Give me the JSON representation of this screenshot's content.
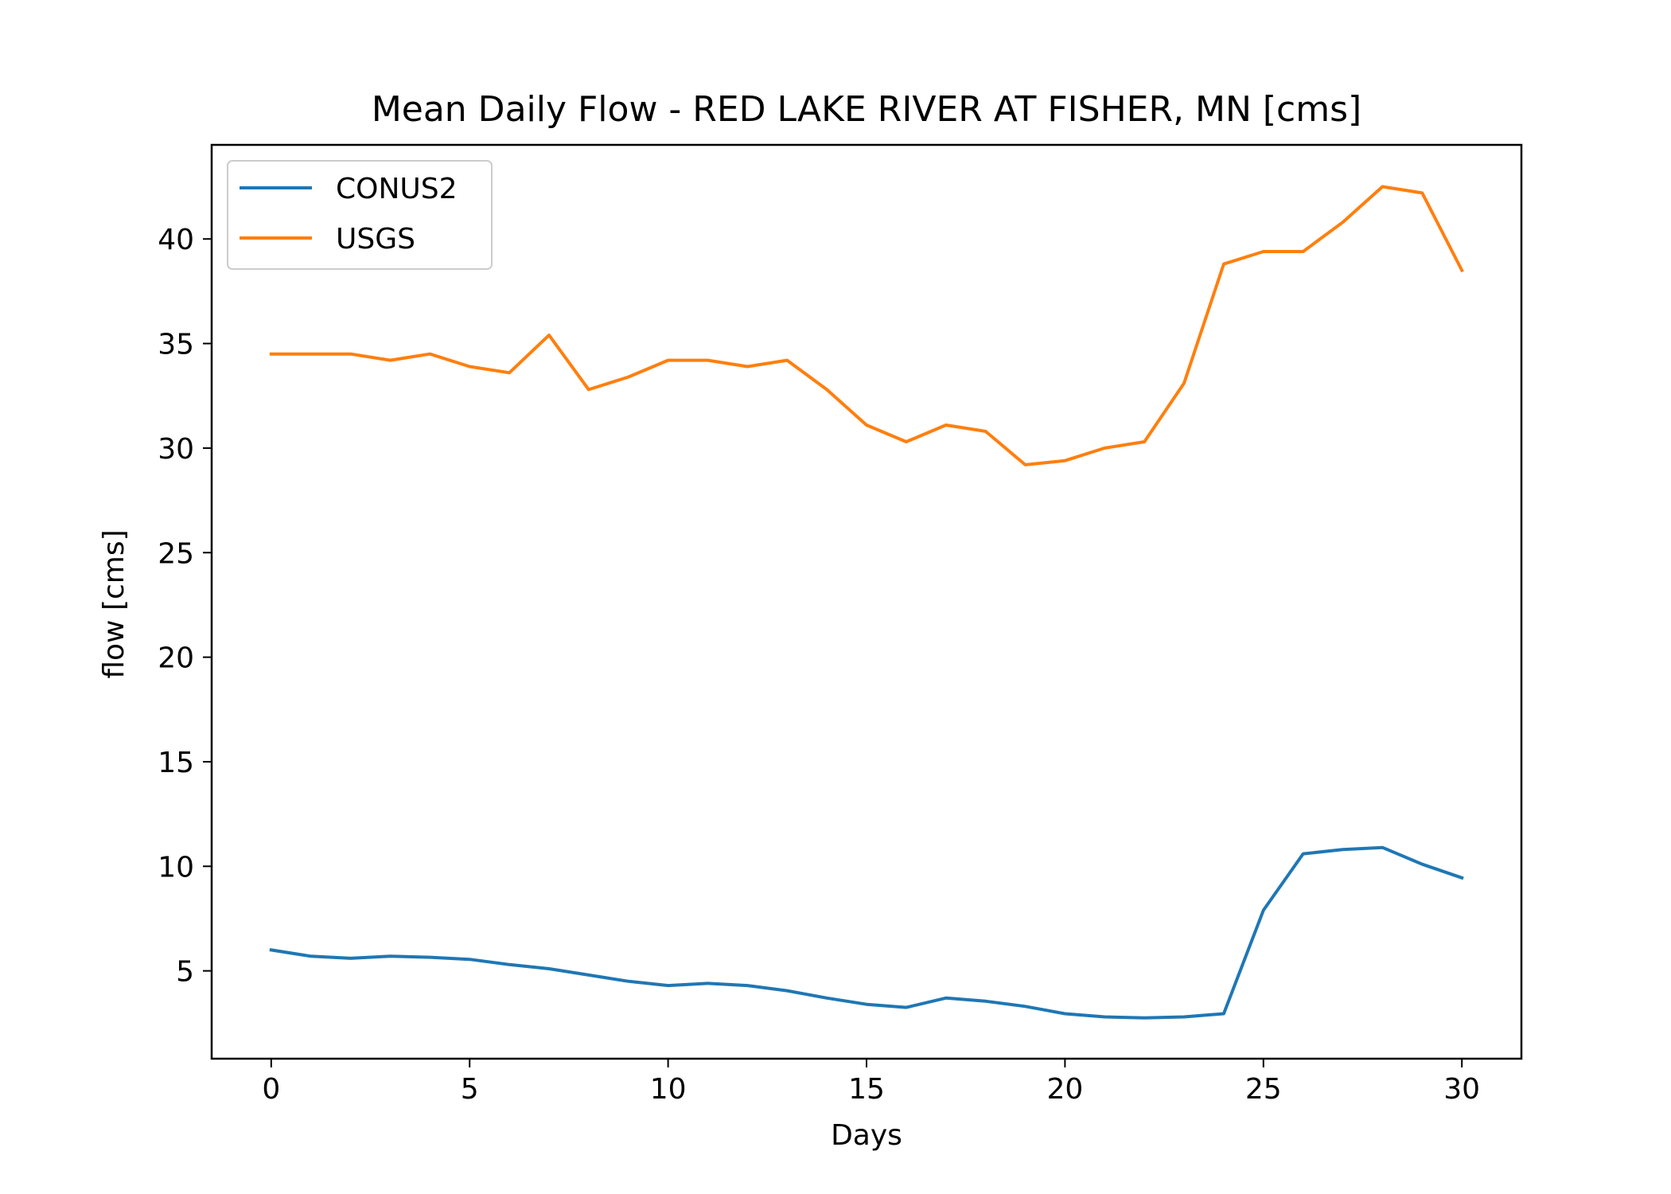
{
  "chart_data": {
    "type": "line",
    "title": "Mean Daily Flow - RED LAKE RIVER AT FISHER, MN [cms]",
    "xlabel": "Days",
    "ylabel": "flow [cms]",
    "xlim": [
      -1.5,
      31.5
    ],
    "ylim": [
      0.8,
      44.5
    ],
    "xticks": [
      0,
      5,
      10,
      15,
      20,
      25,
      30
    ],
    "yticks": [
      5,
      10,
      15,
      20,
      25,
      30,
      35,
      40
    ],
    "grid": false,
    "legend_position": "upper left",
    "x": [
      0,
      1,
      2,
      3,
      4,
      5,
      6,
      7,
      8,
      9,
      10,
      11,
      12,
      13,
      14,
      15,
      16,
      17,
      18,
      19,
      20,
      21,
      22,
      23,
      24,
      25,
      26,
      27,
      28,
      29,
      30
    ],
    "series": [
      {
        "name": "CONUS2",
        "color": "#1f77b4",
        "values": [
          6.0,
          5.7,
          5.6,
          5.7,
          5.65,
          5.55,
          5.3,
          5.1,
          4.8,
          4.5,
          4.3,
          4.4,
          4.3,
          4.05,
          3.7,
          3.4,
          3.25,
          3.7,
          3.55,
          3.3,
          2.95,
          2.8,
          2.75,
          2.8,
          2.95,
          7.9,
          10.6,
          10.8,
          10.9,
          10.1,
          9.45
        ]
      },
      {
        "name": "USGS",
        "color": "#ff7f0e",
        "values": [
          34.5,
          34.5,
          34.5,
          34.2,
          34.5,
          33.9,
          33.6,
          35.4,
          32.8,
          33.4,
          34.2,
          34.2,
          33.9,
          34.2,
          32.8,
          31.1,
          30.3,
          31.1,
          30.8,
          29.2,
          29.4,
          30.0,
          30.3,
          33.1,
          38.8,
          39.4,
          39.4,
          40.8,
          42.5,
          42.2,
          38.5
        ]
      }
    ]
  }
}
